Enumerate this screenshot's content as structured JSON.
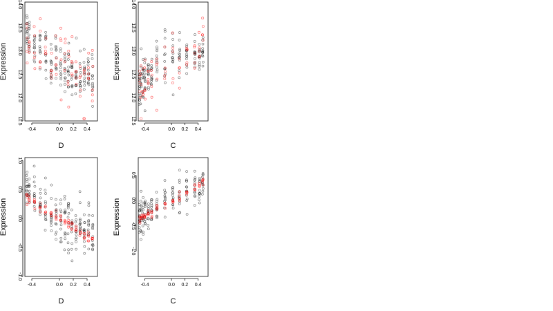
{
  "colors": {
    "background": "#ffffff",
    "frame": "#000000",
    "points_observed": "#000000",
    "points_fitted": "#ff0000"
  },
  "chart_data": [
    {
      "type": "scatter",
      "panel": "top-left",
      "title": "",
      "xlabel": "D",
      "ylabel": "Expression",
      "xlim": [
        -0.5,
        0.55
      ],
      "ylim": [
        11.5,
        14.05
      ],
      "xticks": [
        -0.4,
        0.0,
        0.2,
        0.4
      ],
      "xtick_labels": [
        "-0.4",
        "0.0",
        "0.2",
        "0.4"
      ],
      "yticks": [
        11.5,
        12.0,
        12.5,
        13.0,
        13.5,
        14.0
      ],
      "ytick_labels": [
        "11.5",
        "12.0",
        "12.5",
        "13.0",
        "13.5",
        "14.0"
      ],
      "x_groups": [
        -0.47,
        -0.44,
        -0.36,
        -0.28,
        -0.2,
        -0.12,
        -0.05,
        0.02,
        0.08,
        0.13,
        0.18,
        0.24,
        0.3,
        0.36,
        0.42,
        0.48
      ],
      "group_centers": [
        13.5,
        13.35,
        13.15,
        13.05,
        12.95,
        12.7,
        12.75,
        12.6,
        12.7,
        12.65,
        12.55,
        12.5,
        12.55,
        12.4,
        12.6,
        12.35
      ],
      "group_spread": [
        0.35,
        0.35,
        0.35,
        0.3,
        0.4,
        0.45,
        0.45,
        0.45,
        0.5,
        0.45,
        0.45,
        0.45,
        0.4,
        0.4,
        0.35,
        0.35
      ],
      "fit_intercept": 12.75,
      "fit_slope": -1.1,
      "fit_spread": 0.35,
      "grid": false
    },
    {
      "type": "scatter",
      "panel": "top-right",
      "title": "",
      "xlabel": "C",
      "ylabel": "Expression",
      "xlim": [
        -0.5,
        0.55
      ],
      "ylim": [
        11.5,
        14.05
      ],
      "xticks": [
        -0.4,
        0.0,
        0.2,
        0.4
      ],
      "xtick_labels": [
        "-0.4",
        "0.0",
        "0.2",
        "0.4"
      ],
      "yticks": [
        11.5,
        12.0,
        12.5,
        13.0,
        13.5,
        14.0
      ],
      "ytick_labels": [
        "11.5",
        "12.0",
        "12.5",
        "13.0",
        "13.5",
        "14.0"
      ],
      "x_groups": [
        -0.48,
        -0.46,
        -0.43,
        -0.4,
        -0.35,
        -0.3,
        -0.22,
        -0.1,
        0.02,
        0.12,
        0.23,
        0.35,
        0.42,
        0.47
      ],
      "group_centers": [
        12.2,
        12.3,
        12.35,
        12.5,
        12.4,
        12.5,
        12.75,
        12.9,
        12.75,
        12.8,
        12.9,
        12.95,
        12.9,
        13.0
      ],
      "group_spread": [
        0.45,
        0.45,
        0.45,
        0.45,
        0.35,
        0.35,
        0.35,
        0.45,
        0.45,
        0.45,
        0.35,
        0.35,
        0.4,
        0.35
      ],
      "fit_intercept": 12.65,
      "fit_slope": 0.9,
      "fit_spread": 0.3,
      "grid": false
    },
    {
      "type": "scatter",
      "panel": "bottom-left",
      "title": "",
      "xlabel": "D",
      "ylabel": "Expression",
      "xlim": [
        -0.5,
        0.55
      ],
      "ylim": [
        -1.0,
        1.05
      ],
      "xticks": [
        -0.4,
        0.0,
        0.2,
        0.4
      ],
      "xtick_labels": [
        "-0.4",
        "0.0",
        "0.2",
        "0.4"
      ],
      "yticks": [
        -1.0,
        -0.5,
        0.0,
        0.5,
        1.0
      ],
      "ytick_labels": [
        "-1.0",
        "-0.5",
        "0.0",
        "0.5",
        "1.0"
      ],
      "x_groups": [
        -0.47,
        -0.44,
        -0.36,
        -0.28,
        -0.2,
        -0.12,
        -0.05,
        0.02,
        0.08,
        0.13,
        0.18,
        0.24,
        0.3,
        0.36,
        0.42,
        0.48
      ],
      "group_centers": [
        0.55,
        0.45,
        0.35,
        0.25,
        0.2,
        0.0,
        0.05,
        -0.05,
        -0.05,
        -0.1,
        -0.15,
        -0.2,
        -0.2,
        -0.25,
        -0.15,
        -0.35
      ],
      "group_spread": [
        0.3,
        0.3,
        0.3,
        0.3,
        0.35,
        0.4,
        0.4,
        0.4,
        0.45,
        0.4,
        0.4,
        0.4,
        0.35,
        0.35,
        0.3,
        0.3
      ],
      "fit_intercept": 0.0,
      "fit_slope": -0.75,
      "fit_spread": 0.04,
      "grid": false
    },
    {
      "type": "scatter",
      "panel": "bottom-right",
      "title": "",
      "xlabel": "C",
      "ylabel": "Expression",
      "xlim": [
        -0.5,
        0.55
      ],
      "ylim": [
        -1.5,
        0.85
      ],
      "xticks": [
        -0.4,
        0.0,
        0.2,
        0.4
      ],
      "xtick_labels": [
        "-0.4",
        "0.0",
        "0.2",
        "0.4"
      ],
      "yticks": [
        -1.0,
        -0.5,
        0.0,
        0.5
      ],
      "ytick_labels": [
        "-1.0",
        "-0.5",
        "0.0",
        "0.5"
      ],
      "x_groups": [
        -0.48,
        -0.46,
        -0.43,
        -0.4,
        -0.35,
        -0.3,
        -0.22,
        -0.1,
        0.02,
        0.12,
        0.23,
        0.35,
        0.42,
        0.47
      ],
      "group_centers": [
        -0.4,
        -0.35,
        -0.3,
        -0.2,
        -0.25,
        -0.15,
        -0.1,
        0.05,
        0.05,
        0.1,
        0.2,
        0.25,
        0.2,
        0.3
      ],
      "group_spread": [
        0.35,
        0.35,
        0.35,
        0.35,
        0.3,
        0.3,
        0.3,
        0.35,
        0.35,
        0.35,
        0.3,
        0.3,
        0.3,
        0.3
      ],
      "fit_intercept": 0.0,
      "fit_slope": 0.75,
      "fit_spread": 0.04,
      "grid": false
    }
  ]
}
